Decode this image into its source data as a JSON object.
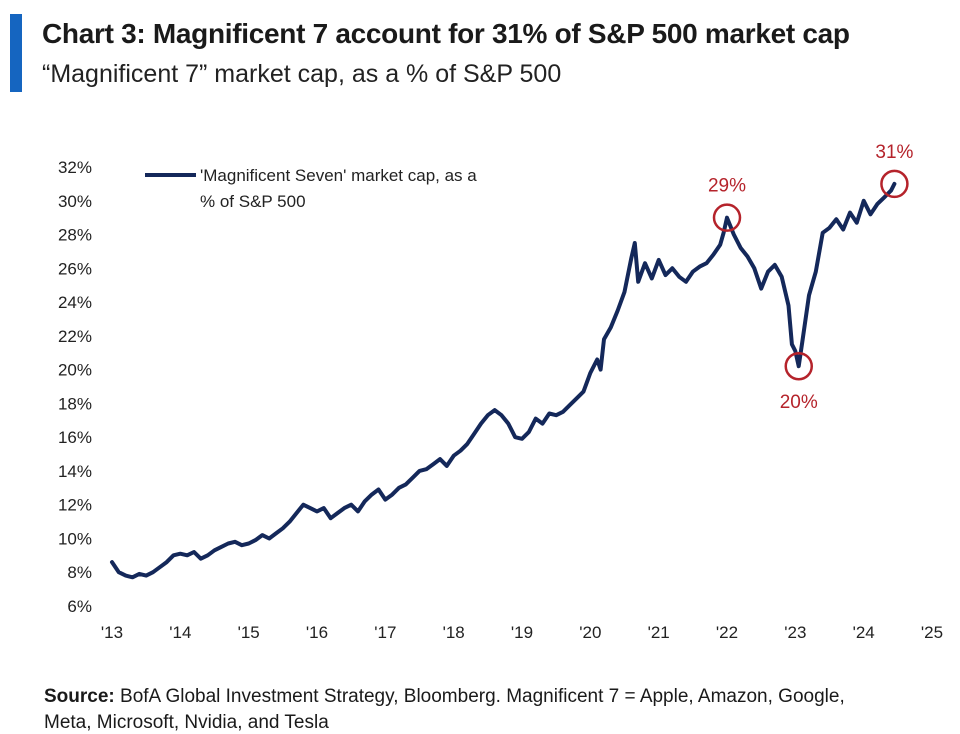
{
  "title": "Chart 3: Magnificent 7 account for 31% of S&P 500 market cap",
  "subtitle": "“Magnificent 7” market cap, as a % of S&P 500",
  "source_label": "Source:",
  "source_text": "BofA Global Investment Strategy, Bloomberg. Magnificent 7 = Apple, Amazon, Google,",
  "source_text_2": "Meta, Microsoft, Nvidia, and Tesla",
  "colors": {
    "accent": "#1565c0",
    "line": "#14285a",
    "annotation": "#b5232b"
  },
  "chart_data": {
    "type": "line",
    "title": "Chart 3: Magnificent 7 account for 31% of S&P 500 market cap",
    "subtitle": "“Magnificent 7” market cap, as a % of S&P 500",
    "xlabel": "",
    "ylabel": "",
    "xlim": [
      2013,
      2025
    ],
    "ylim": [
      6,
      32
    ],
    "x_ticks": [
      2013,
      2014,
      2015,
      2016,
      2017,
      2018,
      2019,
      2020,
      2021,
      2022,
      2023,
      2024,
      2025
    ],
    "x_tick_labels": [
      "'13",
      "'14",
      "'15",
      "'16",
      "'17",
      "'18",
      "'19",
      "'20",
      "'21",
      "'22",
      "'23",
      "'24",
      "'25"
    ],
    "y_ticks": [
      6,
      8,
      10,
      12,
      14,
      16,
      18,
      20,
      22,
      24,
      26,
      28,
      30,
      32
    ],
    "y_tick_labels": [
      "6%",
      "8%",
      "10%",
      "12%",
      "14%",
      "16%",
      "18%",
      "20%",
      "22%",
      "24%",
      "26%",
      "28%",
      "30%",
      "32%"
    ],
    "grid": false,
    "legend": {
      "position": "top-left",
      "label_line1": "'Magnificent Seven' market cap, as a",
      "label_line2": "% of S&P 500"
    },
    "series": [
      {
        "name": "'Magnificent Seven' market cap, as a % of S&P 500",
        "x": [
          2013.0,
          2013.1,
          2013.2,
          2013.3,
          2013.4,
          2013.5,
          2013.6,
          2013.7,
          2013.8,
          2013.9,
          2014.0,
          2014.1,
          2014.2,
          2014.3,
          2014.4,
          2014.5,
          2014.6,
          2014.7,
          2014.8,
          2014.9,
          2015.0,
          2015.1,
          2015.2,
          2015.3,
          2015.4,
          2015.5,
          2015.6,
          2015.7,
          2015.8,
          2015.9,
          2016.0,
          2016.1,
          2016.2,
          2016.3,
          2016.4,
          2016.5,
          2016.6,
          2016.7,
          2016.8,
          2016.9,
          2017.0,
          2017.1,
          2017.2,
          2017.3,
          2017.4,
          2017.5,
          2017.6,
          2017.7,
          2017.8,
          2017.9,
          2018.0,
          2018.1,
          2018.2,
          2018.3,
          2018.4,
          2018.5,
          2018.6,
          2018.7,
          2018.8,
          2018.9,
          2019.0,
          2019.1,
          2019.2,
          2019.3,
          2019.4,
          2019.5,
          2019.6,
          2019.7,
          2019.8,
          2019.9,
          2020.0,
          2020.1,
          2020.15,
          2020.2,
          2020.3,
          2020.4,
          2020.5,
          2020.6,
          2020.65,
          2020.7,
          2020.8,
          2020.9,
          2021.0,
          2021.1,
          2021.2,
          2021.3,
          2021.4,
          2021.5,
          2021.6,
          2021.7,
          2021.8,
          2021.9,
          2021.95,
          2022.0,
          2022.1,
          2022.2,
          2022.3,
          2022.4,
          2022.5,
          2022.6,
          2022.7,
          2022.8,
          2022.9,
          2022.95,
          2023.0,
          2023.05,
          2023.1,
          2023.2,
          2023.3,
          2023.4,
          2023.5,
          2023.6,
          2023.7,
          2023.8,
          2023.9,
          2024.0,
          2024.1,
          2024.2,
          2024.3,
          2024.4,
          2024.45
        ],
        "values": [
          8.6,
          8.0,
          7.8,
          7.7,
          7.9,
          7.8,
          8.0,
          8.3,
          8.6,
          9.0,
          9.1,
          9.0,
          9.2,
          8.8,
          9.0,
          9.3,
          9.5,
          9.7,
          9.8,
          9.6,
          9.7,
          9.9,
          10.2,
          10.0,
          10.3,
          10.6,
          11.0,
          11.5,
          12.0,
          11.8,
          11.6,
          11.8,
          11.2,
          11.5,
          11.8,
          12.0,
          11.6,
          12.2,
          12.6,
          12.9,
          12.3,
          12.6,
          13.0,
          13.2,
          13.6,
          14.0,
          14.1,
          14.4,
          14.7,
          14.3,
          14.9,
          15.2,
          15.6,
          16.2,
          16.8,
          17.3,
          17.6,
          17.3,
          16.8,
          16.0,
          15.9,
          16.3,
          17.1,
          16.8,
          17.4,
          17.3,
          17.5,
          17.9,
          18.3,
          18.7,
          19.8,
          20.6,
          20.0,
          21.8,
          22.5,
          23.5,
          24.6,
          26.6,
          27.5,
          25.2,
          26.3,
          25.4,
          26.5,
          25.6,
          26.0,
          25.5,
          25.2,
          25.8,
          26.1,
          26.3,
          26.8,
          27.4,
          28.1,
          29.0,
          28.0,
          27.2,
          26.7,
          26.0,
          24.8,
          25.8,
          26.2,
          25.5,
          23.8,
          21.5,
          21.1,
          20.2,
          21.6,
          24.4,
          25.8,
          28.1,
          28.4,
          28.9,
          28.3,
          29.3,
          28.7,
          30.0,
          29.2,
          29.8,
          30.2,
          30.6,
          31.0
        ]
      }
    ],
    "annotations": [
      {
        "label": "29%",
        "x": 2022.0,
        "y": 29.0,
        "label_position": "above"
      },
      {
        "label": "20%",
        "x": 2023.05,
        "y": 20.2,
        "label_position": "below"
      },
      {
        "label": "31%",
        "x": 2024.45,
        "y": 31.0,
        "label_position": "above"
      }
    ]
  }
}
